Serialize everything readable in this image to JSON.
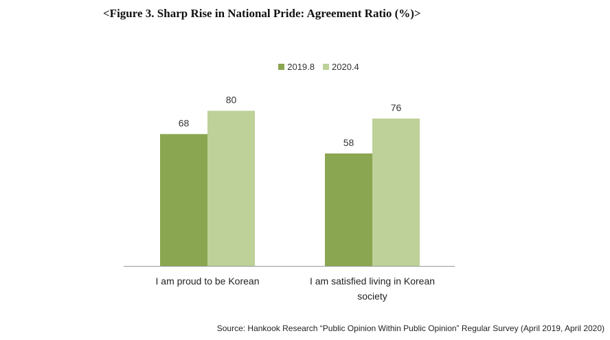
{
  "title": "<Figure 3. Sharp Rise in National Pride: Agreement Ratio (%)>",
  "source": "Source: Hankook Research “Public Opinion Within Public Opinion” Regular Survey (April 2019, April 2020)",
  "colors": {
    "series_2019": "#8ba650",
    "series_2020": "#bdd198",
    "axis": "#999999"
  },
  "chart_data": {
    "type": "bar",
    "categories": [
      [
        "I am proud to be Korean"
      ],
      [
        "I am satisfied living in Korean",
        "society"
      ]
    ],
    "series": [
      {
        "name": "2019.8",
        "values": [
          68,
          58
        ]
      },
      {
        "name": "2020.4",
        "values": [
          80,
          76
        ]
      }
    ],
    "ylim": [
      0,
      100
    ],
    "grid": false,
    "legend": "top-center",
    "data_labels": true
  }
}
